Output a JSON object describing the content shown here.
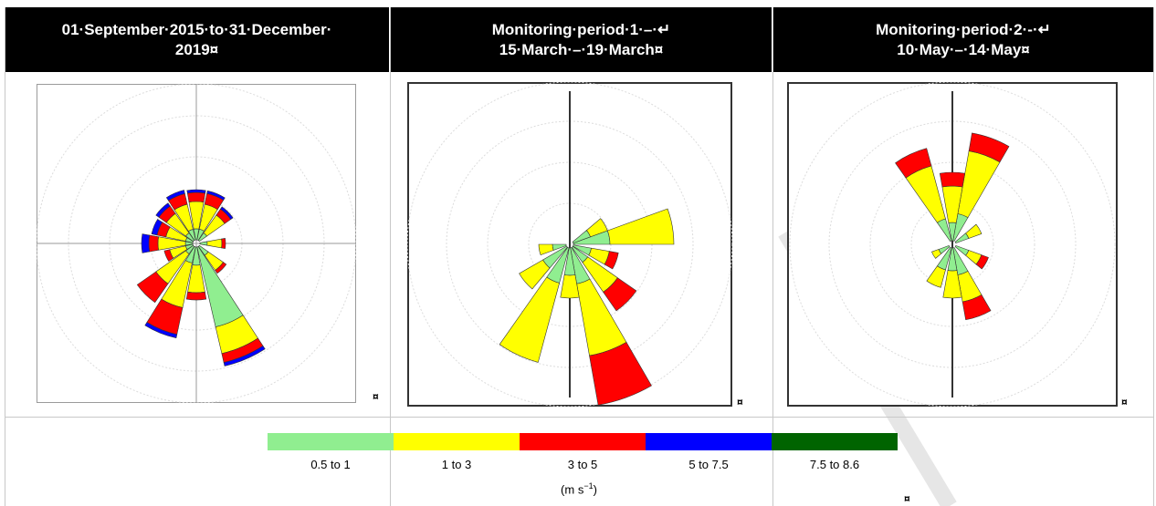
{
  "headers": [
    {
      "line1": "01·September·2015·to·31·December·",
      "line2": "2019¤"
    },
    {
      "line1": "Monitoring·period·1·–·↵",
      "line2": "15·March·–·19·March¤"
    },
    {
      "line1": "Monitoring·period·2·-·↵",
      "line2": "10·May·–·14·May¤"
    }
  ],
  "cell_mark": "¤",
  "legend": {
    "items": [
      {
        "label": "0.5 to 1",
        "color": "#90ee90"
      },
      {
        "label": "1 to 3",
        "color": "#ffff00"
      },
      {
        "label": "3 to 5",
        "color": "#ff0000"
      },
      {
        "label": "5 to 7.5",
        "color": "#0000ff"
      },
      {
        "label": "7.5 to 8.6",
        "color": "#006400"
      }
    ],
    "unit_prefix": "(m s",
    "unit_exp": "−1",
    "unit_suffix": ")"
  },
  "colors": {
    "calm": "#90ee90",
    "light": "#ffff00",
    "moderate": "#ff0000",
    "strong": "#0000ff",
    "vstrong": "#006400"
  }
}
